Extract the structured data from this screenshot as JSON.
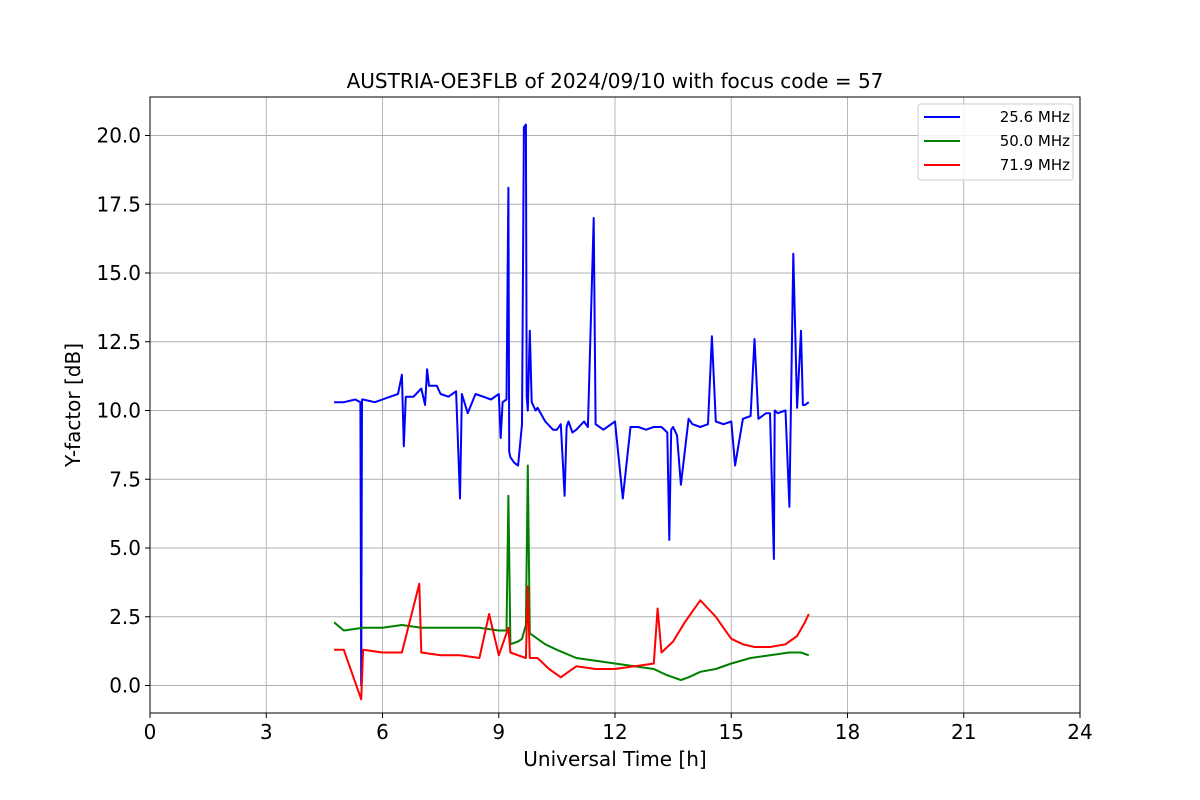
{
  "chart_data": {
    "type": "line",
    "title": "AUSTRIA-OE3FLB of 2024/09/10 with focus code = 57",
    "xlabel": "Universal Time [h]",
    "ylabel": "Y-factor [dB]",
    "xlim": [
      0,
      24
    ],
    "ylim": [
      -1.0,
      21.4
    ],
    "xticks": [
      0,
      3,
      6,
      9,
      12,
      15,
      18,
      21,
      24
    ],
    "xtick_labels": [
      "0",
      "3",
      "6",
      "9",
      "12",
      "15",
      "18",
      "21",
      "24"
    ],
    "yticks": [
      0.0,
      2.5,
      5.0,
      7.5,
      10.0,
      12.5,
      15.0,
      17.5,
      20.0
    ],
    "ytick_labels": [
      "0.0",
      "2.5",
      "5.0",
      "7.5",
      "10.0",
      "12.5",
      "15.0",
      "17.5",
      "20.0"
    ],
    "grid": true,
    "legend_position": "top-right",
    "series": [
      {
        "name": "25.6 MHz",
        "color": "#0000ff",
        "x": [
          4.75,
          5.0,
          5.3,
          5.43,
          5.45,
          5.47,
          5.5,
          5.8,
          6.2,
          6.4,
          6.5,
          6.55,
          6.6,
          6.8,
          7.0,
          7.1,
          7.15,
          7.2,
          7.4,
          7.5,
          7.7,
          7.9,
          8.0,
          8.05,
          8.2,
          8.4,
          8.6,
          8.8,
          9.0,
          9.05,
          9.1,
          9.2,
          9.25,
          9.27,
          9.3,
          9.4,
          9.5,
          9.6,
          9.65,
          9.7,
          9.72,
          9.75,
          9.8,
          9.85,
          9.95,
          10.0,
          10.2,
          10.4,
          10.5,
          10.6,
          10.7,
          10.75,
          10.8,
          10.9,
          11.0,
          11.2,
          11.3,
          11.45,
          11.5,
          11.7,
          12.0,
          12.2,
          12.4,
          12.6,
          12.8,
          13.0,
          13.2,
          13.35,
          13.4,
          13.45,
          13.5,
          13.6,
          13.7,
          13.9,
          14.0,
          14.2,
          14.4,
          14.5,
          14.6,
          14.8,
          15.0,
          15.1,
          15.3,
          15.5,
          15.6,
          15.7,
          15.9,
          16.0,
          16.1,
          16.12,
          16.2,
          16.4,
          16.5,
          16.6,
          16.7,
          16.8,
          16.85,
          16.9,
          17.0
        ],
        "y": [
          10.3,
          10.3,
          10.4,
          10.3,
          0.0,
          10.4,
          10.4,
          10.3,
          10.5,
          10.6,
          11.3,
          8.7,
          10.5,
          10.5,
          10.8,
          10.2,
          11.5,
          10.9,
          10.9,
          10.6,
          10.5,
          10.7,
          6.8,
          10.6,
          9.9,
          10.6,
          10.5,
          10.4,
          10.6,
          9.0,
          10.3,
          10.4,
          18.1,
          8.5,
          8.3,
          8.1,
          8.0,
          9.5,
          20.3,
          20.4,
          10.5,
          10.0,
          12.9,
          10.3,
          10.0,
          10.1,
          9.6,
          9.3,
          9.3,
          9.5,
          6.9,
          9.4,
          9.6,
          9.2,
          9.3,
          9.6,
          9.4,
          17.0,
          9.5,
          9.3,
          9.6,
          6.8,
          9.4,
          9.4,
          9.3,
          9.4,
          9.4,
          9.2,
          5.3,
          9.3,
          9.4,
          9.1,
          7.3,
          9.7,
          9.5,
          9.4,
          9.5,
          12.7,
          9.6,
          9.5,
          9.6,
          8.0,
          9.7,
          9.8,
          12.6,
          9.7,
          9.9,
          9.9,
          4.6,
          10.0,
          9.9,
          10.0,
          6.5,
          15.7,
          10.1,
          12.9,
          10.2,
          10.2,
          10.3
        ]
      },
      {
        "name": "50.0 MHz",
        "color": "#008000",
        "x": [
          4.75,
          5.0,
          5.5,
          6.0,
          6.5,
          7.0,
          7.5,
          8.0,
          8.5,
          9.0,
          9.2,
          9.25,
          9.3,
          9.5,
          9.6,
          9.7,
          9.75,
          9.8,
          10.0,
          10.2,
          10.5,
          11.0,
          11.5,
          12.0,
          12.5,
          13.0,
          13.3,
          13.5,
          13.7,
          13.9,
          14.2,
          14.6,
          15.0,
          15.5,
          16.0,
          16.5,
          16.8,
          17.0
        ],
        "y": [
          2.3,
          2.0,
          2.1,
          2.1,
          2.2,
          2.1,
          2.1,
          2.1,
          2.1,
          2.0,
          2.0,
          6.9,
          1.5,
          1.6,
          1.7,
          2.2,
          8.0,
          1.9,
          1.7,
          1.5,
          1.3,
          1.0,
          0.9,
          0.8,
          0.7,
          0.6,
          0.4,
          0.3,
          0.2,
          0.3,
          0.5,
          0.6,
          0.8,
          1.0,
          1.1,
          1.2,
          1.2,
          1.1
        ]
      },
      {
        "name": "71.9 MHz",
        "color": "#ff0000",
        "x": [
          4.75,
          5.0,
          5.45,
          5.5,
          6.0,
          6.5,
          6.95,
          7.0,
          7.5,
          8.0,
          8.5,
          8.75,
          9.0,
          9.25,
          9.3,
          9.5,
          9.7,
          9.75,
          9.8,
          10.0,
          10.3,
          10.6,
          10.8,
          11.0,
          11.5,
          12.0,
          12.5,
          13.0,
          13.1,
          13.2,
          13.5,
          13.8,
          14.0,
          14.2,
          14.4,
          14.6,
          14.8,
          15.0,
          15.3,
          15.6,
          16.0,
          16.4,
          16.7,
          16.9,
          17.0
        ],
        "y": [
          1.3,
          1.3,
          -0.5,
          1.3,
          1.2,
          1.2,
          3.7,
          1.2,
          1.1,
          1.1,
          1.0,
          2.6,
          1.1,
          2.1,
          1.2,
          1.1,
          1.0,
          3.6,
          1.0,
          1.0,
          0.6,
          0.3,
          0.5,
          0.7,
          0.6,
          0.6,
          0.7,
          0.8,
          2.8,
          1.2,
          1.6,
          2.3,
          2.7,
          3.1,
          2.8,
          2.5,
          2.1,
          1.7,
          1.5,
          1.4,
          1.4,
          1.5,
          1.8,
          2.3,
          2.6
        ]
      }
    ]
  }
}
